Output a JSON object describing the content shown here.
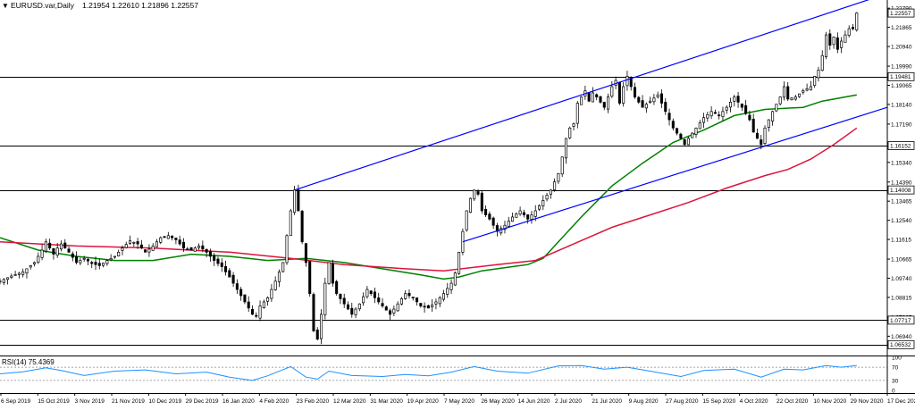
{
  "header": {
    "arrow_glyph": "▼",
    "symbol": "EURUSD.var,Daily",
    "ohlc": "1.21954 1.22610 1.21896 1.22557"
  },
  "rsi_panel": {
    "label": "RSI(14) 75.4369"
  },
  "colors": {
    "candle": "#000000",
    "trendline": "#0000ff",
    "ma_fast": "#008000",
    "ma_slow": "#dc143c",
    "level": "#000000",
    "rsi": "#1e90ff"
  },
  "chart_data": [
    {
      "type": "candlestick",
      "symbol": "EURUSD.var",
      "timeframe": "Daily",
      "ylim": [
        1.0605,
        1.231
      ],
      "y_ticks": [
        "1.22790",
        "1.21865",
        "1.20940",
        "1.19990",
        "1.19065",
        "1.18140",
        "1.17190",
        "1.16265",
        "1.15340",
        "1.14390",
        "1.13465",
        "1.12540",
        "1.11615",
        "1.10665",
        "1.09740",
        "1.08815",
        "1.07865",
        "1.06940"
      ],
      "price_tags": [
        {
          "label": "1.22557",
          "value": 1.22557
        },
        {
          "label": "1.19481",
          "value": 1.19481
        },
        {
          "label": "1.16152",
          "value": 1.16152
        },
        {
          "label": "1.14008",
          "value": 1.14008
        },
        {
          "label": "1.07717",
          "value": 1.07717
        },
        {
          "label": "1.06532",
          "value": 1.06532
        }
      ],
      "horizontal_levels": [
        1.19481,
        1.16152,
        1.14008,
        1.07717,
        1.06532
      ],
      "x_labels": [
        "6 Sep 2019",
        "15 Oct 2019",
        "3 Nov 2019",
        "21 Nov 2019",
        "10 Dec 2019",
        "29 Dec 2019",
        "16 Jan 2020",
        "4 Feb 2020",
        "23 Feb 2020",
        "12 Mar 2020",
        "31 Mar 2020",
        "19 Apr 2020",
        "7 May 2020",
        "26 May 2020",
        "14 Jun 2020",
        "2 Jul 2020",
        "21 Jul 2020",
        "9 Aug 2020",
        "27 Aug 2020",
        "15 Sep 2020",
        "4 Oct 2020",
        "22 Oct 2020",
        "10 Nov 2020",
        "29 Nov 2020",
        "17 Dec 2020"
      ],
      "price_path": [
        [
          0,
          1.096
        ],
        [
          3,
          1.0985
        ],
        [
          6,
          1.1005
        ],
        [
          9,
          1.105
        ],
        [
          11,
          1.111
        ],
        [
          12,
          1.115
        ],
        [
          13,
          1.112
        ],
        [
          14,
          1.109
        ],
        [
          15,
          1.112
        ],
        [
          16,
          1.114
        ],
        [
          18,
          1.11
        ],
        [
          20,
          1.105
        ],
        [
          22,
          1.107
        ],
        [
          24,
          1.1045
        ],
        [
          26,
          1.1035
        ],
        [
          28,
          1.106
        ],
        [
          30,
          1.108
        ],
        [
          32,
          1.112
        ],
        [
          34,
          1.1155
        ],
        [
          36,
          1.114
        ],
        [
          38,
          1.11
        ],
        [
          40,
          1.113
        ],
        [
          42,
          1.117
        ],
        [
          44,
          1.118
        ],
        [
          46,
          1.116
        ],
        [
          48,
          1.112
        ],
        [
          50,
          1.111
        ],
        [
          52,
          1.113
        ],
        [
          54,
          1.11
        ],
        [
          56,
          1.106
        ],
        [
          58,
          1.103
        ],
        [
          60,
          1.098
        ],
        [
          62,
          1.092
        ],
        [
          64,
          1.086
        ],
        [
          66,
          1.08
        ],
        [
          67,
          1.079
        ],
        [
          68,
          1.084
        ],
        [
          70,
          1.088
        ],
        [
          72,
          1.096
        ],
        [
          74,
          1.105
        ],
        [
          75,
          1.118
        ],
        [
          76,
          1.13
        ],
        [
          77,
          1.14
        ],
        [
          78,
          1.13
        ],
        [
          79,
          1.115
        ],
        [
          80,
          1.105
        ],
        [
          81,
          1.09
        ],
        [
          82,
          1.072
        ],
        [
          83,
          1.068
        ],
        [
          84,
          1.08
        ],
        [
          85,
          1.095
        ],
        [
          86,
          1.105
        ],
        [
          87,
          1.095
        ],
        [
          88,
          1.09
        ],
        [
          90,
          1.085
        ],
        [
          92,
          1.08
        ],
        [
          94,
          1.085
        ],
        [
          96,
          1.092
        ],
        [
          98,
          1.088
        ],
        [
          100,
          1.084
        ],
        [
          102,
          1.08
        ],
        [
          104,
          1.085
        ],
        [
          106,
          1.09
        ],
        [
          108,
          1.088
        ],
        [
          110,
          1.084
        ],
        [
          112,
          1.083
        ],
        [
          114,
          1.086
        ],
        [
          116,
          1.09
        ],
        [
          118,
          1.095
        ],
        [
          119,
          1.1
        ],
        [
          120,
          1.11
        ],
        [
          121,
          1.12
        ],
        [
          122,
          1.13
        ],
        [
          123,
          1.136
        ],
        [
          124,
          1.14
        ],
        [
          125,
          1.138
        ],
        [
          126,
          1.13
        ],
        [
          128,
          1.126
        ],
        [
          130,
          1.12
        ],
        [
          132,
          1.123
        ],
        [
          134,
          1.127
        ],
        [
          136,
          1.13
        ],
        [
          138,
          1.126
        ],
        [
          140,
          1.13
        ],
        [
          142,
          1.135
        ],
        [
          144,
          1.14
        ],
        [
          146,
          1.148
        ],
        [
          147,
          1.156
        ],
        [
          148,
          1.165
        ],
        [
          149,
          1.17
        ],
        [
          150,
          1.172
        ],
        [
          151,
          1.182
        ],
        [
          152,
          1.185
        ],
        [
          153,
          1.188
        ],
        [
          154,
          1.183
        ],
        [
          155,
          1.187
        ],
        [
          156,
          1.185
        ],
        [
          158,
          1.18
        ],
        [
          160,
          1.19
        ],
        [
          161,
          1.193
        ],
        [
          162,
          1.182
        ],
        [
          163,
          1.19
        ],
        [
          164,
          1.195
        ],
        [
          165,
          1.19
        ],
        [
          166,
          1.185
        ],
        [
          168,
          1.18
        ],
        [
          170,
          1.183
        ],
        [
          172,
          1.186
        ],
        [
          174,
          1.178
        ],
        [
          176,
          1.17
        ],
        [
          178,
          1.165
        ],
        [
          179,
          1.162
        ],
        [
          180,
          1.165
        ],
        [
          182,
          1.17
        ],
        [
          184,
          1.175
        ],
        [
          186,
          1.178
        ],
        [
          188,
          1.176
        ],
        [
          190,
          1.18
        ],
        [
          192,
          1.185
        ],
        [
          194,
          1.18
        ],
        [
          196,
          1.174
        ],
        [
          197,
          1.168
        ],
        [
          198,
          1.165
        ],
        [
          199,
          1.162
        ],
        [
          200,
          1.17
        ],
        [
          202,
          1.178
        ],
        [
          204,
          1.185
        ],
        [
          205,
          1.19
        ],
        [
          206,
          1.184
        ],
        [
          208,
          1.185
        ],
        [
          210,
          1.188
        ],
        [
          212,
          1.19
        ],
        [
          213,
          1.195
        ],
        [
          214,
          1.198
        ],
        [
          215,
          1.205
        ],
        [
          216,
          1.215
        ],
        [
          217,
          1.21
        ],
        [
          218,
          1.214
        ],
        [
          219,
          1.208
        ],
        [
          220,
          1.212
        ],
        [
          221,
          1.215
        ],
        [
          222,
          1.218
        ],
        [
          223,
          1.218
        ],
        [
          224,
          1.2256
        ]
      ],
      "trendlines": [
        {
          "from": [
            77,
            1.14
          ],
          "to": [
            232,
            1.235
          ]
        },
        {
          "from": [
            121,
            1.115
          ],
          "to": [
            232,
            1.18
          ]
        }
      ],
      "moving_averages": [
        {
          "role": "fast",
          "points": [
            [
              0,
              1.117
            ],
            [
              10,
              1.111
            ],
            [
              20,
              1.108
            ],
            [
              30,
              1.106
            ],
            [
              40,
              1.106
            ],
            [
              50,
              1.109
            ],
            [
              60,
              1.108
            ],
            [
              70,
              1.106
            ],
            [
              80,
              1.107
            ],
            [
              90,
              1.105
            ],
            [
              100,
              1.102
            ],
            [
              110,
              1.099
            ],
            [
              116,
              1.097
            ],
            [
              120,
              1.098
            ],
            [
              126,
              1.101
            ],
            [
              134,
              1.103
            ],
            [
              138,
              1.104
            ],
            [
              142,
              1.107
            ],
            [
              146,
              1.115
            ],
            [
              152,
              1.127
            ],
            [
              160,
              1.142
            ],
            [
              168,
              1.153
            ],
            [
              176,
              1.163
            ],
            [
              184,
              1.169
            ],
            [
              192,
              1.176
            ],
            [
              200,
              1.179
            ],
            [
              210,
              1.18
            ],
            [
              215,
              1.183
            ],
            [
              224,
              1.186
            ]
          ]
        },
        {
          "role": "slow",
          "points": [
            [
              0,
              1.115
            ],
            [
              20,
              1.113
            ],
            [
              40,
              1.112
            ],
            [
              60,
              1.11
            ],
            [
              76,
              1.107
            ],
            [
              90,
              1.104
            ],
            [
              106,
              1.102
            ],
            [
              116,
              1.101
            ],
            [
              130,
              1.104
            ],
            [
              140,
              1.106
            ],
            [
              150,
              1.114
            ],
            [
              160,
              1.122
            ],
            [
              170,
              1.128
            ],
            [
              180,
              1.134
            ],
            [
              190,
              1.141
            ],
            [
              200,
              1.147
            ],
            [
              206,
              1.15
            ],
            [
              212,
              1.155
            ],
            [
              218,
              1.162
            ],
            [
              224,
              1.17
            ]
          ]
        }
      ]
    },
    {
      "type": "line",
      "indicator": "RSI(14)",
      "ylim": [
        0,
        100
      ],
      "y_ticks": [
        "100",
        "70",
        "30",
        "0"
      ],
      "levels": [
        70,
        30
      ],
      "current_value": 75.4369,
      "points": [
        [
          0,
          50
        ],
        [
          6,
          56
        ],
        [
          12,
          68
        ],
        [
          16,
          60
        ],
        [
          22,
          45
        ],
        [
          30,
          58
        ],
        [
          38,
          62
        ],
        [
          46,
          50
        ],
        [
          54,
          55
        ],
        [
          60,
          40
        ],
        [
          66,
          30
        ],
        [
          70,
          44
        ],
        [
          76,
          72
        ],
        [
          80,
          40
        ],
        [
          83,
          34
        ],
        [
          86,
          58
        ],
        [
          92,
          45
        ],
        [
          100,
          42
        ],
        [
          106,
          48
        ],
        [
          112,
          44
        ],
        [
          118,
          55
        ],
        [
          124,
          72
        ],
        [
          130,
          58
        ],
        [
          138,
          52
        ],
        [
          146,
          74
        ],
        [
          152,
          75
        ],
        [
          158,
          64
        ],
        [
          164,
          70
        ],
        [
          170,
          58
        ],
        [
          178,
          42
        ],
        [
          184,
          60
        ],
        [
          192,
          64
        ],
        [
          199,
          40
        ],
        [
          205,
          64
        ],
        [
          210,
          62
        ],
        [
          216,
          75
        ],
        [
          220,
          70
        ],
        [
          224,
          75.4
        ]
      ]
    }
  ]
}
